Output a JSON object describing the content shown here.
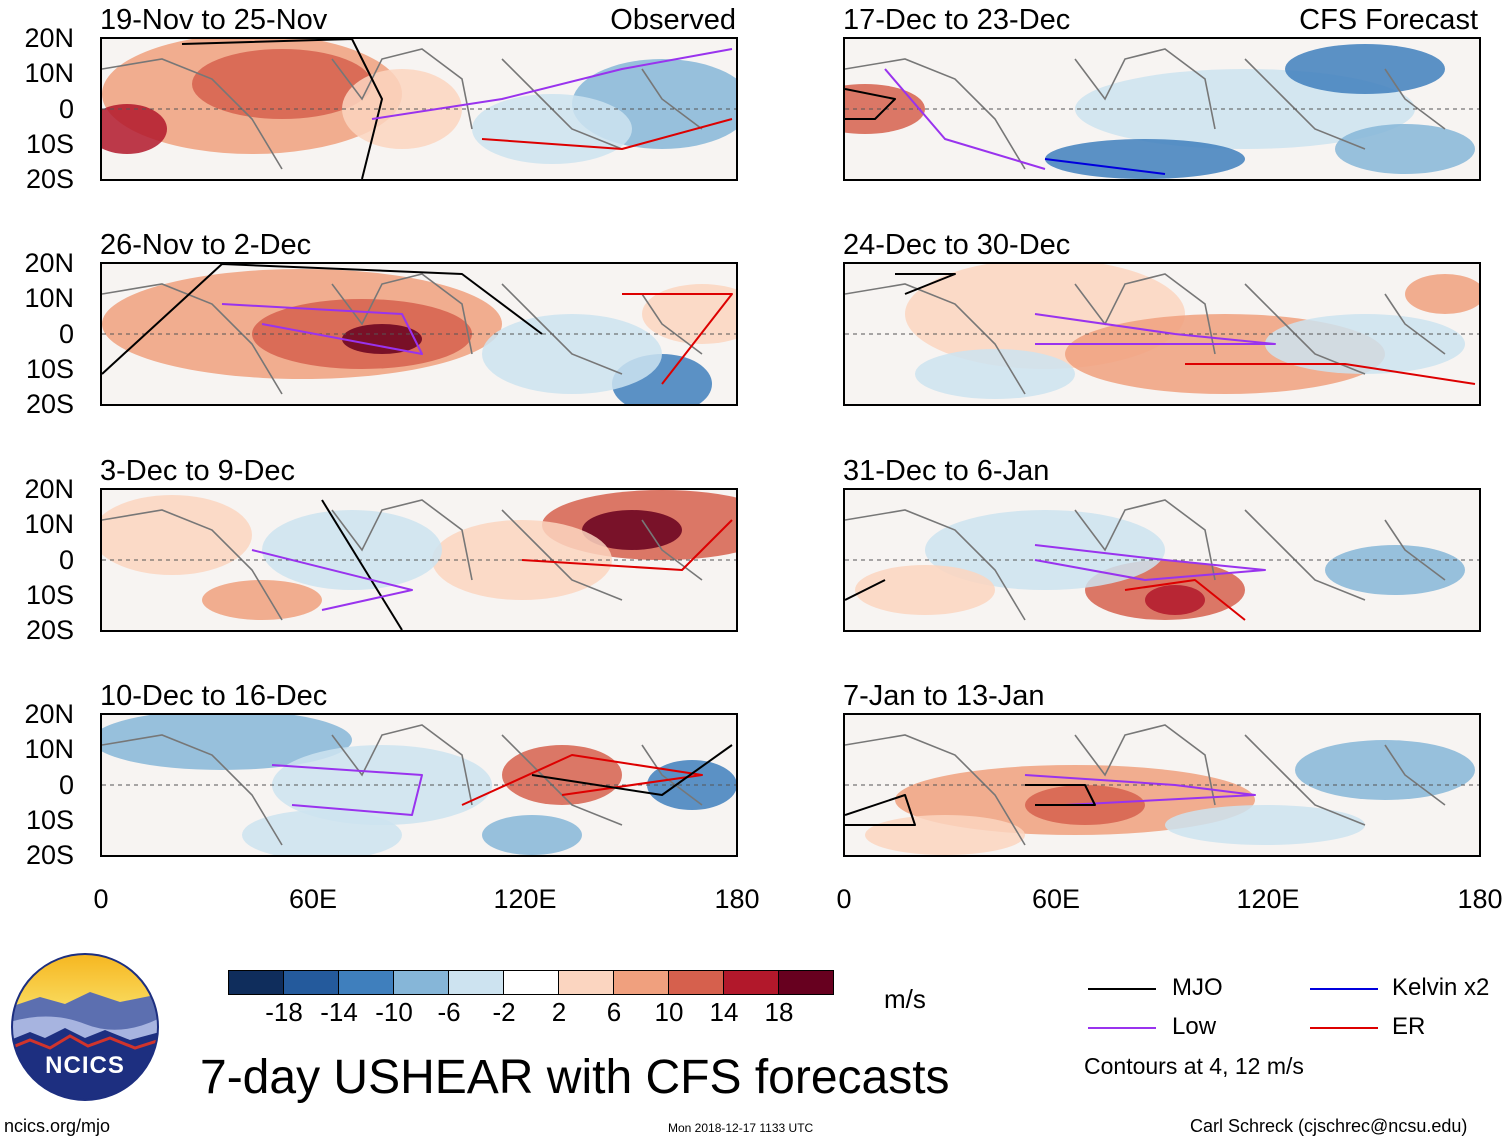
{
  "panels_left": [
    {
      "title": "19-Nov to 25-Nov",
      "tag": "Observed"
    },
    {
      "title": "26-Nov to 2-Dec",
      "tag": ""
    },
    {
      "title": "3-Dec to 9-Dec",
      "tag": ""
    },
    {
      "title": "10-Dec to 16-Dec",
      "tag": ""
    }
  ],
  "panels_right": [
    {
      "title": "17-Dec to 23-Dec",
      "tag": "CFS Forecast"
    },
    {
      "title": "24-Dec to 30-Dec",
      "tag": ""
    },
    {
      "title": "31-Dec to 6-Jan",
      "tag": ""
    },
    {
      "title": "7-Jan to 13-Jan",
      "tag": ""
    }
  ],
  "lat_labels": [
    "20N",
    "10N",
    "0",
    "10S",
    "20S"
  ],
  "lon_labels": [
    "0",
    "60E",
    "120E",
    "180"
  ],
  "colorbar": {
    "labels": [
      "-18",
      "-14",
      "-10",
      "-6",
      "-2",
      "2",
      "6",
      "10",
      "14",
      "18"
    ],
    "units": "m/s",
    "colors": [
      "#0f2d5c",
      "#245a9c",
      "#3f7fbd",
      "#86b6d8",
      "#cde3f0",
      "#ffffff",
      "#fbd5c0",
      "#f0a07e",
      "#d6604d",
      "#b2182b",
      "#67001f"
    ]
  },
  "legend": {
    "items": [
      {
        "label": "MJO",
        "color": "#000000"
      },
      {
        "label": "Kelvin x2",
        "color": "#0000dd"
      },
      {
        "label": "Low",
        "color": "#9933ee"
      },
      {
        "label": "ER",
        "color": "#dd0000"
      }
    ],
    "note": "Contours at 4, 12 m/s"
  },
  "logo_text": "NCICS",
  "title": "7-day USHEAR with CFS forecasts",
  "footer": {
    "left": "ncics.org/mjo",
    "center": "Mon 2018-12-17 1133 UTC",
    "right": "Carl Schreck (cjschrec@ncsu.edu)"
  }
}
